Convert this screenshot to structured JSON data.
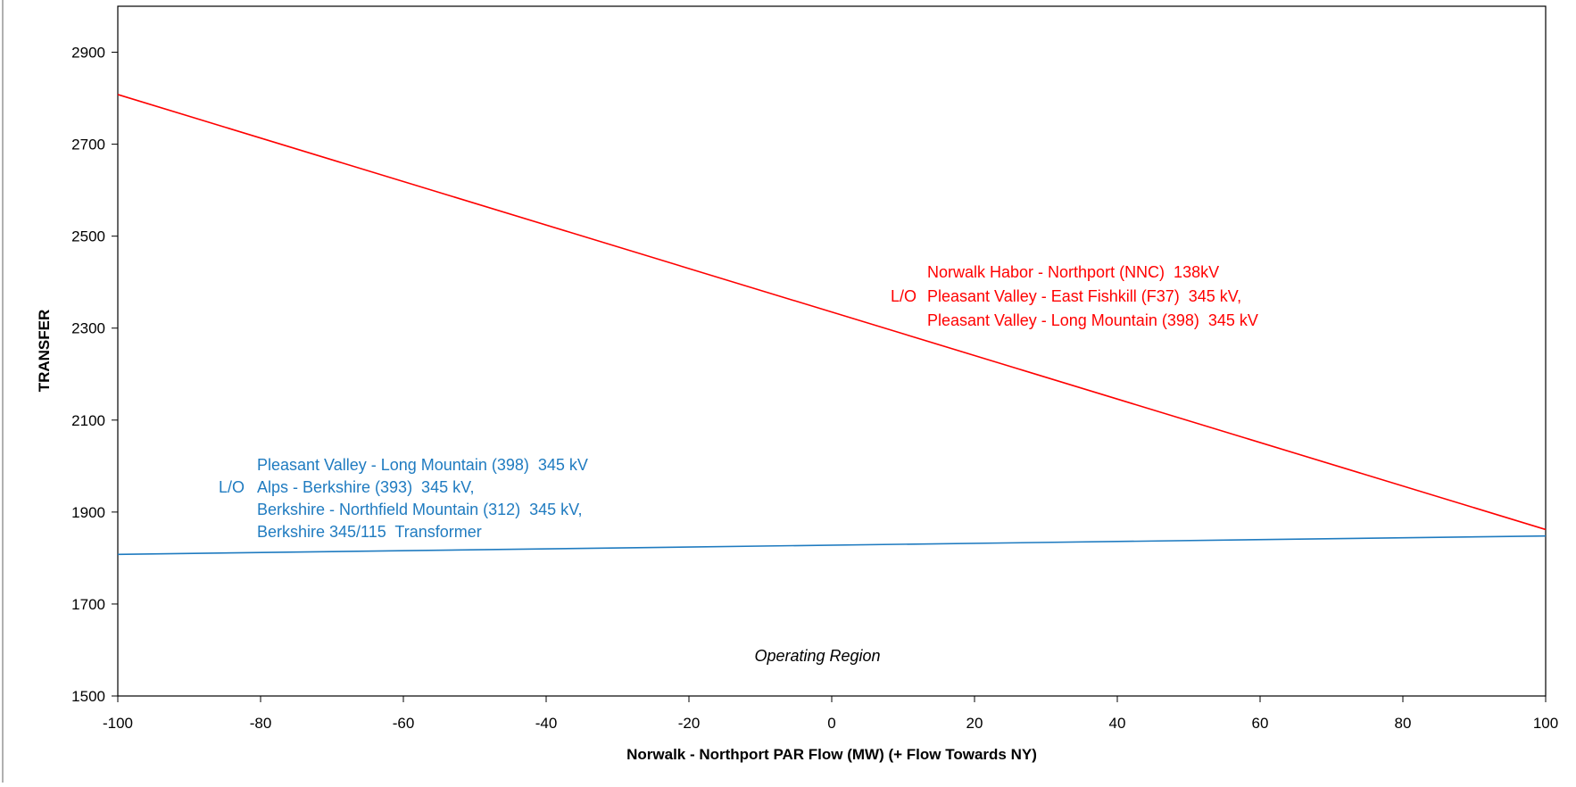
{
  "chart_data": {
    "type": "line",
    "title": "",
    "xlabel": "Norwalk - Northport PAR Flow (MW) (+ Flow Towards NY)",
    "ylabel": "TRANSFER",
    "xlim": [
      -100,
      100
    ],
    "ylim": [
      1500,
      3000
    ],
    "xticks": [
      -100,
      -80,
      -60,
      -40,
      -20,
      0,
      20,
      40,
      60,
      80,
      100
    ],
    "yticks": [
      1500,
      1700,
      1900,
      2100,
      2300,
      2500,
      2700,
      2900
    ],
    "grid": false,
    "legend": "none",
    "series": [
      {
        "color": "#ff0000",
        "x": [
          -100,
          100
        ],
        "y": [
          2808,
          1862
        ]
      },
      {
        "color": "#1f7bc0",
        "x": [
          -100,
          100
        ],
        "y": [
          1808,
          1848
        ]
      }
    ],
    "annotations": [
      {
        "id": "red",
        "color": "#ff0000",
        "lines": [
          {
            "prefix": "",
            "text": "Norwalk Habor - Northport (NNC)  138kV"
          },
          {
            "prefix": "L/O",
            "text": "Pleasant Valley - East Fishkill (F37)  345 kV,"
          },
          {
            "prefix": "",
            "text": "Pleasant Valley - Long Mountain (398)  345 kV"
          }
        ]
      },
      {
        "id": "blue",
        "color": "#1f7bc0",
        "lines": [
          {
            "prefix": "",
            "text": "Pleasant Valley - Long Mountain (398)  345 kV"
          },
          {
            "prefix": "L/O",
            "text": "Alps - Berkshire (393)  345 kV,"
          },
          {
            "prefix": "",
            "text": "Berkshire - Northfield Mountain (312)  345 kV,"
          },
          {
            "prefix": "",
            "text": "Berkshire 345/115  Transformer"
          }
        ]
      }
    ],
    "region_label": "Operating Region"
  }
}
